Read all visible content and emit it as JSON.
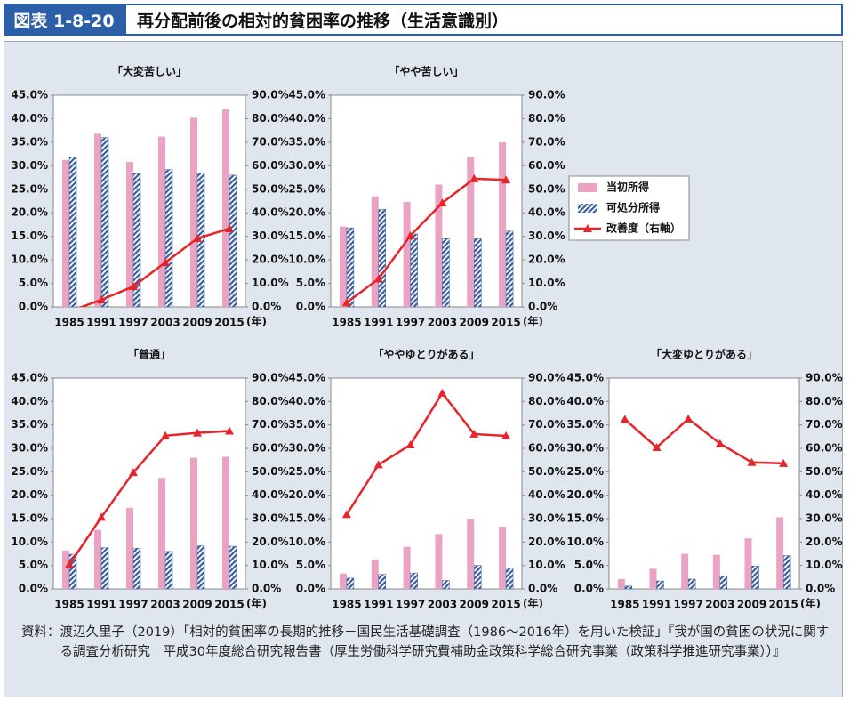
{
  "header": {
    "label": "図表 1-8-20",
    "title": "再分配前後の相対的貧困率の推移（生活意識別）"
  },
  "chart_data": [
    {
      "type": "bar-line",
      "title": "「大変苦しい」",
      "categories": [
        "1985",
        "1991",
        "1997",
        "2003",
        "2009",
        "2015"
      ],
      "xlabel": "(年)",
      "series": [
        {
          "name": "当初所得",
          "color": "#eaa3c3",
          "values": [
            31.2,
            36.8,
            30.8,
            36.2,
            40.2,
            42.0
          ]
        },
        {
          "name": "可処分所得",
          "color": "#3a5f9e",
          "pattern": "hatch",
          "values": [
            31.8,
            36.0,
            28.3,
            29.2,
            28.4,
            28.0
          ]
        },
        {
          "name": "改善度（右軸）",
          "color": "#e8232a",
          "axis": "y2",
          "values": [
            -1.9,
            3.0,
            8.7,
            18.9,
            29.1,
            33.3
          ]
        }
      ],
      "ylim": [
        0,
        45
      ],
      "yticks": [
        {
          "value": 0,
          "label": "0.0%"
        },
        {
          "value": 5,
          "label": "5.0%"
        },
        {
          "value": 10,
          "label": "10.0%"
        },
        {
          "value": 15,
          "label": "15.0%"
        },
        {
          "value": 20,
          "label": "20.0%"
        },
        {
          "value": 25,
          "label": "25.0%"
        },
        {
          "value": 30,
          "label": "30.0%"
        },
        {
          "value": 35,
          "label": "35.0%"
        },
        {
          "value": 40,
          "label": "40.0%"
        },
        {
          "value": 45,
          "label": "45.0%"
        }
      ],
      "y2lim": [
        0,
        90
      ],
      "y2ticks": [
        {
          "value": 0,
          "label": "0.0%"
        },
        {
          "value": 10,
          "label": "10.0%"
        },
        {
          "value": 20,
          "label": "20.0%"
        },
        {
          "value": 30,
          "label": "30.0%"
        },
        {
          "value": 40,
          "label": "40.0%"
        },
        {
          "value": 50,
          "label": "50.0%"
        },
        {
          "value": 60,
          "label": "60.0%"
        },
        {
          "value": 70,
          "label": "70.0%"
        },
        {
          "value": 80,
          "label": "80.0%"
        },
        {
          "value": 90,
          "label": "90.0%"
        }
      ],
      "grid": false,
      "legend": false
    },
    {
      "type": "bar-line",
      "title": "「やや苦しい」",
      "categories": [
        "1985",
        "1991",
        "1997",
        "2003",
        "2009",
        "2015"
      ],
      "xlabel": "(年)",
      "series": [
        {
          "name": "当初所得",
          "color": "#eaa3c3",
          "values": [
            17.1,
            23.5,
            22.3,
            26.0,
            31.8,
            35.0
          ]
        },
        {
          "name": "可処分所得",
          "color": "#3a5f9e",
          "pattern": "hatch",
          "values": [
            16.8,
            20.7,
            15.5,
            14.5,
            14.5,
            16.1
          ]
        },
        {
          "name": "改善度（右軸）",
          "color": "#e8232a",
          "axis": "y2",
          "values": [
            1.8,
            11.9,
            30.3,
            44.2,
            54.5,
            54.0
          ]
        }
      ],
      "ylim": [
        0,
        45
      ],
      "yticks": [
        {
          "value": 0,
          "label": "0.0%"
        },
        {
          "value": 5,
          "label": "5.0%"
        },
        {
          "value": 10,
          "label": "10.0%"
        },
        {
          "value": 15,
          "label": "15.0%"
        },
        {
          "value": 20,
          "label": "20.0%"
        },
        {
          "value": 25,
          "label": "25.0%"
        },
        {
          "value": 30,
          "label": "30.0%"
        },
        {
          "value": 35,
          "label": "35.0%"
        },
        {
          "value": 40,
          "label": "40.0%"
        },
        {
          "value": 45,
          "label": "45.0%"
        }
      ],
      "y2lim": [
        0,
        90
      ],
      "y2ticks": [
        {
          "value": 0,
          "label": "0.0%"
        },
        {
          "value": 10,
          "label": "10.0%"
        },
        {
          "value": 20,
          "label": "20.0%"
        },
        {
          "value": 30,
          "label": "30.0%"
        },
        {
          "value": 40,
          "label": "40.0%"
        },
        {
          "value": 50,
          "label": "50.0%"
        },
        {
          "value": 60,
          "label": "60.0%"
        },
        {
          "value": 70,
          "label": "70.0%"
        },
        {
          "value": 80,
          "label": "80.0%"
        },
        {
          "value": 90,
          "label": "90.0%"
        }
      ],
      "grid": false,
      "legend": "right"
    },
    {
      "type": "bar-line",
      "title": "「普通」",
      "categories": [
        "1985",
        "1991",
        "1997",
        "2003",
        "2009",
        "2015"
      ],
      "xlabel": "(年)",
      "series": [
        {
          "name": "当初所得",
          "color": "#eaa3c3",
          "values": [
            8.2,
            12.6,
            17.3,
            23.7,
            28.0,
            28.2
          ]
        },
        {
          "name": "可処分所得",
          "color": "#3a5f9e",
          "pattern": "hatch",
          "values": [
            7.4,
            8.8,
            8.7,
            8.0,
            9.2,
            9.1
          ]
        },
        {
          "name": "改善度（右軸）",
          "color": "#e8232a",
          "axis": "y2",
          "values": [
            10.4,
            30.6,
            49.7,
            65.4,
            66.6,
            67.4
          ]
        }
      ],
      "ylim": [
        0,
        45
      ],
      "yticks": [
        {
          "value": 0,
          "label": "0.0%"
        },
        {
          "value": 5,
          "label": "5.0%"
        },
        {
          "value": 10,
          "label": "10.0%"
        },
        {
          "value": 15,
          "label": "15.0%"
        },
        {
          "value": 20,
          "label": "20.0%"
        },
        {
          "value": 25,
          "label": "25.0%"
        },
        {
          "value": 30,
          "label": "30.0%"
        },
        {
          "value": 35,
          "label": "35.0%"
        },
        {
          "value": 40,
          "label": "40.0%"
        },
        {
          "value": 45,
          "label": "45.0%"
        }
      ],
      "y2lim": [
        0,
        90
      ],
      "y2ticks": [
        {
          "value": 0,
          "label": "0.0%"
        },
        {
          "value": 10,
          "label": "10.0%"
        },
        {
          "value": 20,
          "label": "20.0%"
        },
        {
          "value": 30,
          "label": "30.0%"
        },
        {
          "value": 40,
          "label": "40.0%"
        },
        {
          "value": 50,
          "label": "50.0%"
        },
        {
          "value": 60,
          "label": "60.0%"
        },
        {
          "value": 70,
          "label": "70.0%"
        },
        {
          "value": 80,
          "label": "80.0%"
        },
        {
          "value": 90,
          "label": "90.0%"
        }
      ],
      "grid": false,
      "legend": false
    },
    {
      "type": "bar-line",
      "title": "「ややゆとりがある」",
      "categories": [
        "1985",
        "1991",
        "1997",
        "2003",
        "2009",
        "2015"
      ],
      "xlabel": "(年)",
      "series": [
        {
          "name": "当初所得",
          "color": "#eaa3c3",
          "values": [
            3.3,
            6.3,
            9.0,
            11.7,
            15.0,
            13.3
          ]
        },
        {
          "name": "可処分所得",
          "color": "#3a5f9e",
          "pattern": "hatch",
          "values": [
            2.3,
            3.1,
            3.4,
            1.8,
            5.0,
            4.5
          ]
        },
        {
          "name": "改善度（右軸）",
          "color": "#e8232a",
          "axis": "y2",
          "values": [
            31.8,
            53.0,
            61.5,
            83.6,
            66.1,
            65.3
          ]
        }
      ],
      "ylim": [
        0,
        45
      ],
      "yticks": [
        {
          "value": 0,
          "label": "0.0%"
        },
        {
          "value": 5,
          "label": "5.0%"
        },
        {
          "value": 10,
          "label": "10.0%"
        },
        {
          "value": 15,
          "label": "15.0%"
        },
        {
          "value": 20,
          "label": "20.0%"
        },
        {
          "value": 25,
          "label": "25.0%"
        },
        {
          "value": 30,
          "label": "30.0%"
        },
        {
          "value": 35,
          "label": "35.0%"
        },
        {
          "value": 40,
          "label": "40.0%"
        },
        {
          "value": 45,
          "label": "45.0%"
        }
      ],
      "y2lim": [
        0,
        90
      ],
      "y2ticks": [
        {
          "value": 0,
          "label": "0.0%"
        },
        {
          "value": 10,
          "label": "10.0%"
        },
        {
          "value": 20,
          "label": "20.0%"
        },
        {
          "value": 30,
          "label": "30.0%"
        },
        {
          "value": 40,
          "label": "40.0%"
        },
        {
          "value": 50,
          "label": "50.0%"
        },
        {
          "value": 60,
          "label": "60.0%"
        },
        {
          "value": 70,
          "label": "70.0%"
        },
        {
          "value": 80,
          "label": "80.0%"
        },
        {
          "value": 90,
          "label": "90.0%"
        }
      ],
      "grid": false,
      "legend": false
    },
    {
      "type": "bar-line",
      "title": "「大変ゆとりがある」",
      "categories": [
        "1985",
        "1991",
        "1997",
        "2003",
        "2009",
        "2015"
      ],
      "xlabel": "(年)",
      "series": [
        {
          "name": "当初所得",
          "color": "#eaa3c3",
          "values": [
            2.1,
            4.3,
            7.5,
            7.3,
            10.8,
            15.3
          ]
        },
        {
          "name": "可処分所得",
          "color": "#3a5f9e",
          "pattern": "hatch",
          "values": [
            0.6,
            1.7,
            2.1,
            2.8,
            4.9,
            7.1
          ]
        },
        {
          "name": "改善度（右軸）",
          "color": "#e8232a",
          "axis": "y2",
          "values": [
            72.4,
            60.4,
            72.6,
            62.0,
            54.0,
            53.6
          ]
        }
      ],
      "ylim": [
        0,
        45
      ],
      "yticks": [
        {
          "value": 0,
          "label": "0.0%"
        },
        {
          "value": 5,
          "label": "5.0%"
        },
        {
          "value": 10,
          "label": "10.0%"
        },
        {
          "value": 15,
          "label": "15.0%"
        },
        {
          "value": 20,
          "label": "20.0%"
        },
        {
          "value": 25,
          "label": "25.0%"
        },
        {
          "value": 30,
          "label": "30.0%"
        },
        {
          "value": 35,
          "label": "35.0%"
        },
        {
          "value": 40,
          "label": "40.0%"
        },
        {
          "value": 45,
          "label": "45.0%"
        }
      ],
      "y2lim": [
        0,
        90
      ],
      "y2ticks": [
        {
          "value": 0,
          "label": "0.0%"
        },
        {
          "value": 10,
          "label": "10.0%"
        },
        {
          "value": 20,
          "label": "20.0%"
        },
        {
          "value": 30,
          "label": "30.0%"
        },
        {
          "value": 40,
          "label": "40.0%"
        },
        {
          "value": 50,
          "label": "50.0%"
        },
        {
          "value": 60,
          "label": "60.0%"
        },
        {
          "value": 70,
          "label": "70.0%"
        },
        {
          "value": 80,
          "label": "80.0%"
        },
        {
          "value": 90,
          "label": "90.0%"
        }
      ],
      "grid": false,
      "legend": false
    }
  ],
  "source": {
    "label": "資料：",
    "text": "渡辺久里子（2019）「相対的貧困率の長期的推移－国民生活基礎調査（1986～2016年）を用いた検証」『我が国の貧困の状況に関する調査分析研究　平成30年度総合研究報告書（厚生労働科学研究費補助金政策科学総合研究事業（政策科学推進研究事業））』"
  }
}
